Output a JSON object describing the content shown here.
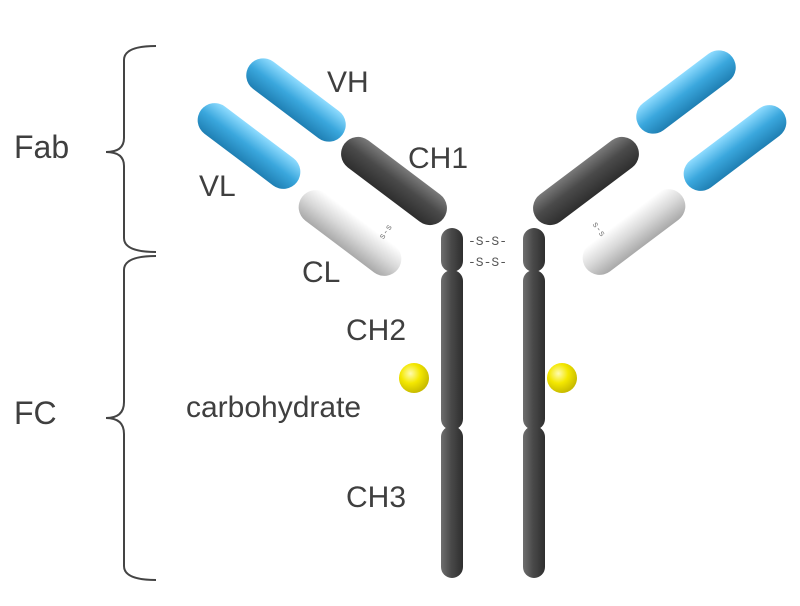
{
  "labels": {
    "fab": "Fab",
    "fc": "FC",
    "vh": "VH",
    "vl": "VL",
    "ch1": "CH1",
    "cl": "CL",
    "ch2": "CH2",
    "ch3": "CH3",
    "carbohydrate": "carbohydrate"
  },
  "disulfide": {
    "hinge_top": "-S-S-",
    "hinge_bottom": "-S-S-",
    "light_heavy": "s-s"
  },
  "colors": {
    "variable_domain": "#3aa7dd",
    "heavy_constant": "#474747",
    "light_constant": "#d4d4d4",
    "carbohydrate": "#f2e600",
    "text": "#3f3f3f",
    "brace": "#444444"
  }
}
